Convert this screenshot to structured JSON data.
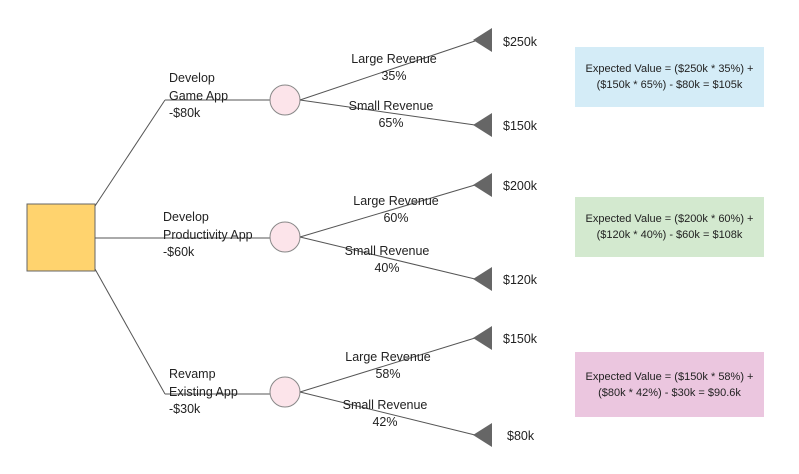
{
  "colors": {
    "decision_fill": "#FFD36E",
    "decision_stroke": "#666666",
    "chance_fill": "#FCE4EA",
    "chance_stroke": "#888888",
    "terminal_fill": "#666666",
    "line": "#555555"
  },
  "branches": [
    {
      "option": [
        "Develop",
        "Game App",
        "-$80k"
      ],
      "outcomes": [
        {
          "label": "Large Revenue",
          "prob": "35%",
          "payoff": "$250k"
        },
        {
          "label": "Small Revenue",
          "prob": "65%",
          "payoff": "$150k"
        }
      ],
      "ev": {
        "line1": "Expected Value = ($250k * 35%) +",
        "line2": "($150k * 65%) - $80k = $105k",
        "color": "#D4ECF7"
      }
    },
    {
      "option": [
        "Develop",
        "Productivity App",
        "-$60k"
      ],
      "outcomes": [
        {
          "label": "Large Revenue",
          "prob": "60%",
          "payoff": "$200k"
        },
        {
          "label": "Small Revenue",
          "prob": "40%",
          "payoff": "$120k"
        }
      ],
      "ev": {
        "line1": "Expected Value = ($200k * 60%) +",
        "line2": "($120k * 40%) - $60k = $108k",
        "color": "#D3E9CF"
      }
    },
    {
      "option": [
        "Revamp",
        "Existing App",
        "-$30k"
      ],
      "outcomes": [
        {
          "label": "Large Revenue",
          "prob": "58%",
          "payoff": "$150k"
        },
        {
          "label": "Small Revenue",
          "prob": "42%",
          "payoff": "$80k"
        }
      ],
      "ev": {
        "line1": "Expected Value = ($150k * 58%) +",
        "line2": "($80k * 42%) - $30k = $90.6k",
        "color": "#EBC6DF"
      }
    }
  ]
}
